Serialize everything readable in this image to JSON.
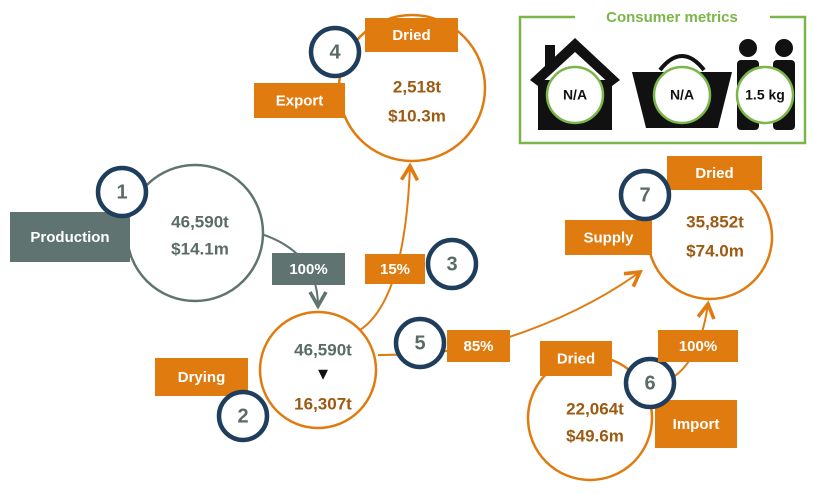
{
  "consumer_metrics": {
    "title": "Consumer metrics",
    "items": [
      "N/A",
      "N/A",
      "1.5 kg"
    ]
  },
  "nodes": [
    {
      "number": "1",
      "label": "Production",
      "lines": [
        "46,590t",
        "$14.1m"
      ]
    },
    {
      "number": "2",
      "label": "Drying",
      "lines": [
        "46,590t",
        "▼",
        "16,307t"
      ]
    },
    {
      "number": "4",
      "label": "Export",
      "tag": "Dried",
      "lines": [
        "2,518t",
        "$10.3m"
      ]
    },
    {
      "number": "7",
      "label": "Supply",
      "tag": "Dried",
      "lines": [
        "35,852t",
        "$74.0m"
      ]
    },
    {
      "number": "6",
      "label": "Import",
      "tag": "Dried",
      "lines": [
        "22,064t",
        "$49.6m"
      ]
    }
  ],
  "flows": [
    {
      "label": "100%"
    },
    {
      "number": "3",
      "label": "15%"
    },
    {
      "number": "5",
      "label": "85%"
    },
    {
      "label": "100%"
    }
  ]
}
